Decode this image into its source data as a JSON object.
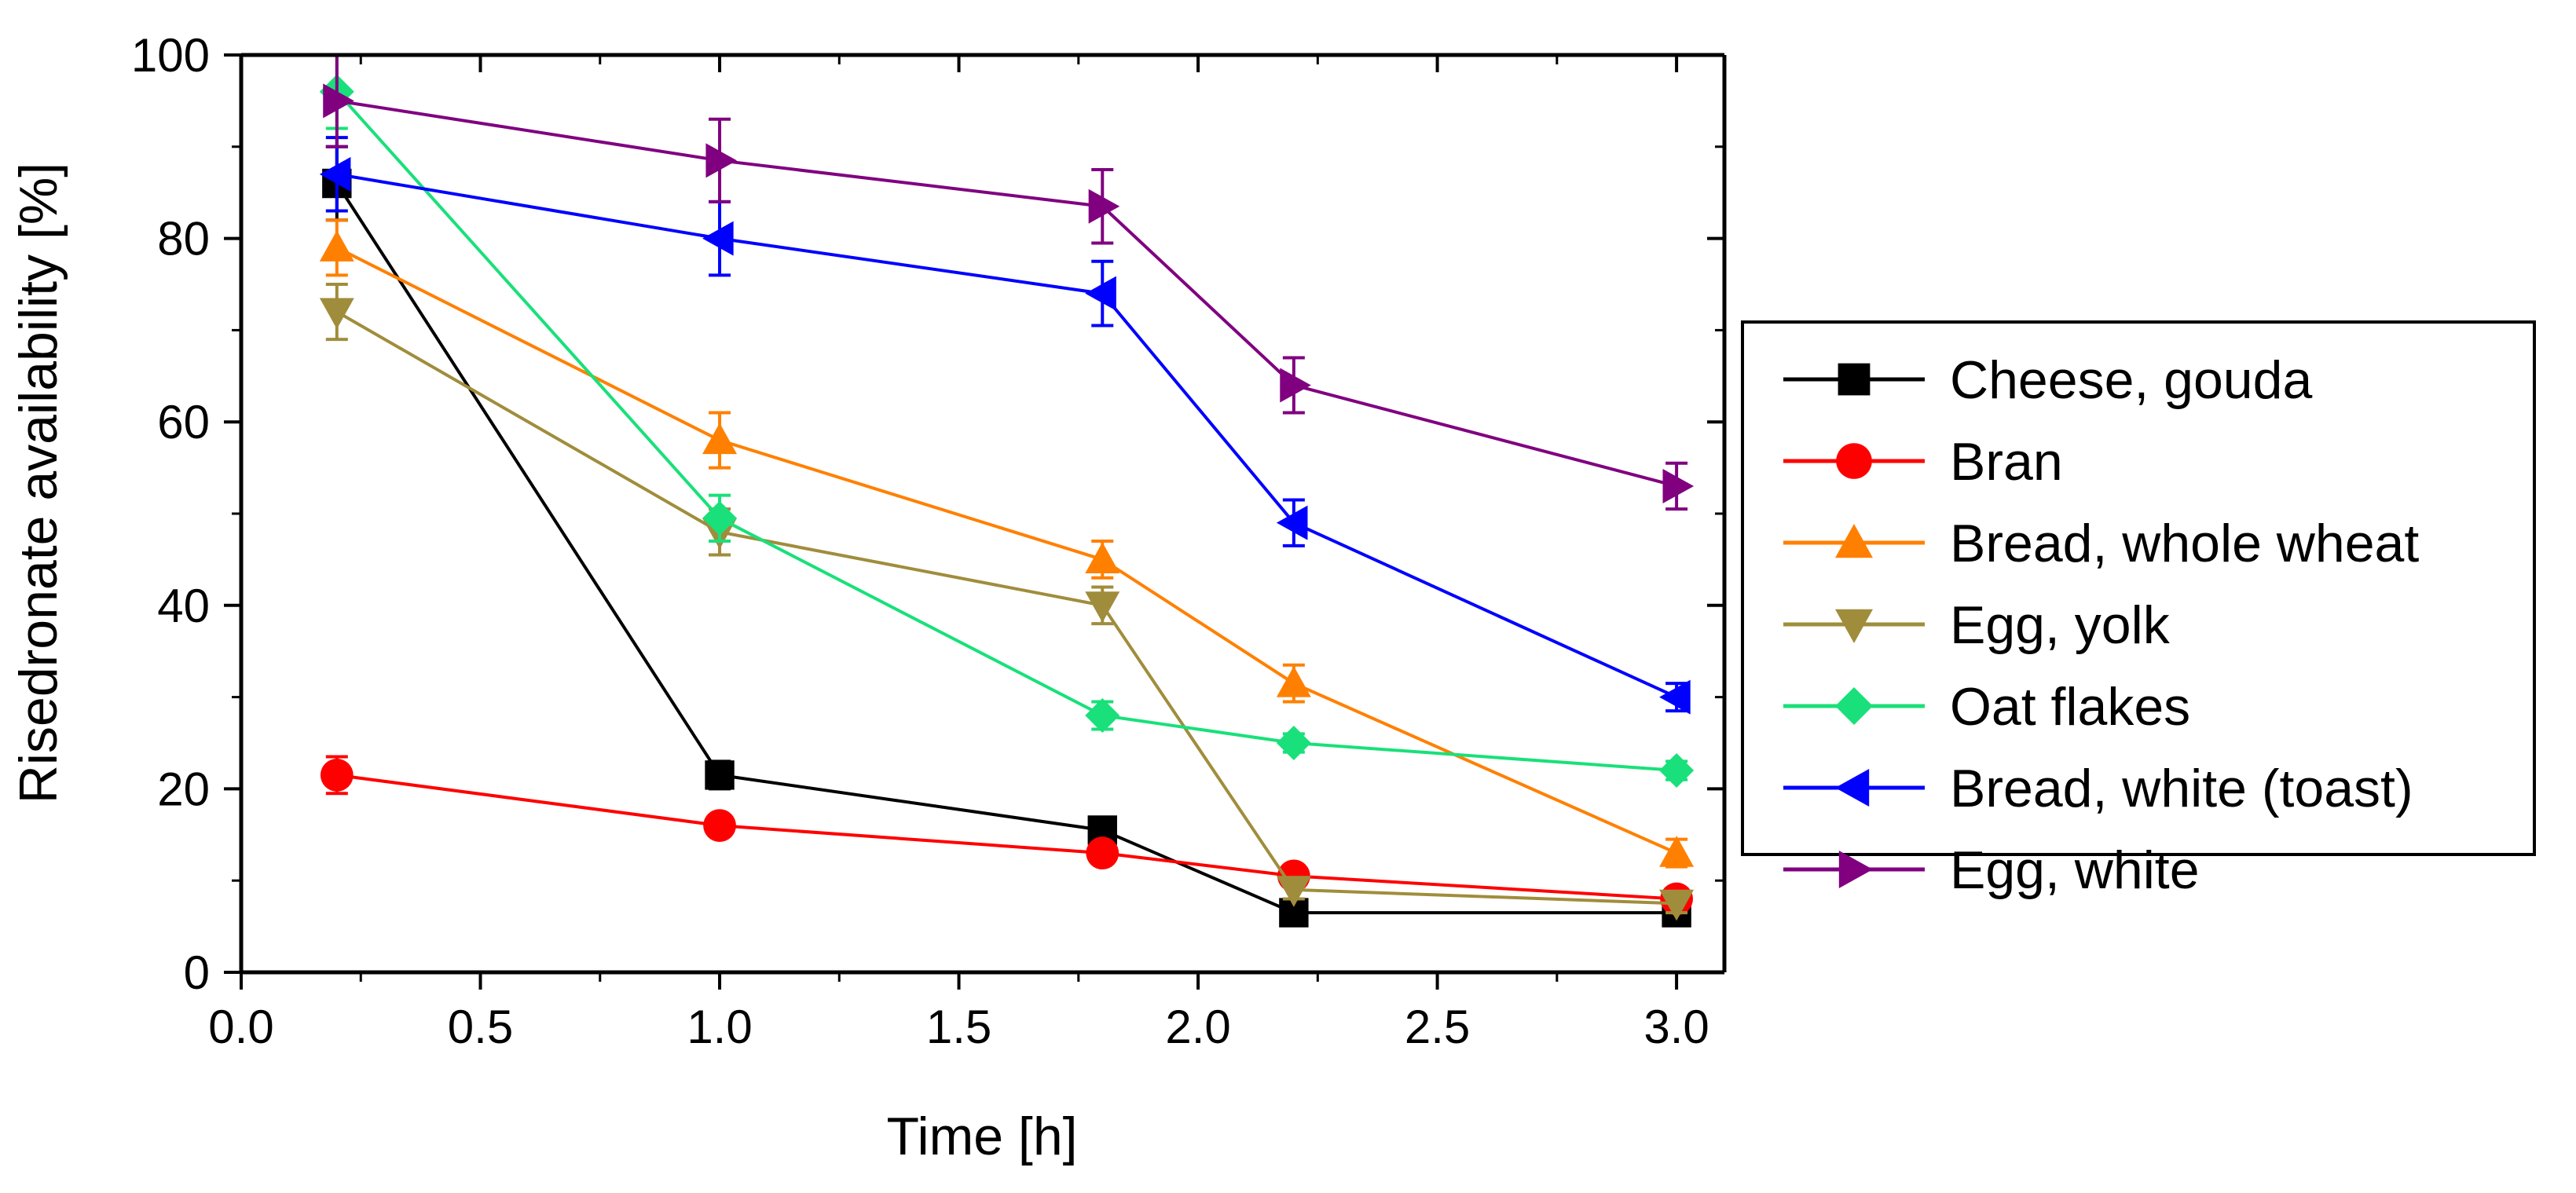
{
  "chart_data": {
    "type": "line",
    "xlabel": "Time [h]",
    "ylabel": "Risedronate availability [%]",
    "xlim": [
      0.0,
      3.1
    ],
    "ylim": [
      0,
      100
    ],
    "xticks": [
      0.0,
      0.5,
      1.0,
      1.5,
      2.0,
      2.5,
      3.0
    ],
    "xtick_labels": [
      "0.0",
      "0.5",
      "1.0",
      "1.5",
      "2.0",
      "2.5",
      "3.0"
    ],
    "yticks": [
      0,
      20,
      40,
      60,
      80,
      100
    ],
    "ytick_labels": [
      "0",
      "20",
      "40",
      "60",
      "80",
      "100"
    ],
    "grid": false,
    "legend_position": "right",
    "series": [
      {
        "name": "Cheese, gouda",
        "color": "#000000",
        "marker": "square",
        "x": [
          0.2,
          1.0,
          1.8,
          2.2,
          3.0
        ],
        "y": [
          86,
          21.5,
          15.5,
          6.5,
          6.5
        ],
        "err": [
          4,
          1.5,
          1.2,
          1,
          1
        ]
      },
      {
        "name": "Bran",
        "color": "#ff0000",
        "marker": "circle",
        "x": [
          0.2,
          1.0,
          1.8,
          2.2,
          3.0
        ],
        "y": [
          21.5,
          16,
          13,
          10.5,
          8
        ],
        "err": [
          2,
          1,
          1,
          1,
          1
        ]
      },
      {
        "name": "Bread, whole wheat",
        "color": "#ff8000",
        "marker": "triangle-up",
        "x": [
          0.2,
          1.0,
          1.8,
          2.2,
          3.0
        ],
        "y": [
          79,
          58,
          45,
          31.5,
          13
        ],
        "err": [
          3,
          3,
          2,
          2,
          1.5
        ]
      },
      {
        "name": "Egg, yolk",
        "color": "#a08d3c",
        "marker": "triangle-down",
        "x": [
          0.2,
          1.0,
          1.8,
          2.2,
          3.0
        ],
        "y": [
          72,
          48,
          40,
          9,
          7.5
        ],
        "err": [
          3,
          2.5,
          2,
          1,
          1
        ]
      },
      {
        "name": "Oat flakes",
        "color": "#19e07a",
        "marker": "diamond",
        "x": [
          0.2,
          1.0,
          1.8,
          2.2,
          3.0
        ],
        "y": [
          96,
          49.5,
          28,
          25,
          22
        ],
        "err": [
          4,
          2.5,
          1.5,
          1,
          1
        ]
      },
      {
        "name": "Bread, white (toast)",
        "color": "#0000ff",
        "marker": "triangle-left",
        "x": [
          0.2,
          1.0,
          1.8,
          2.2,
          3.0
        ],
        "y": [
          87,
          80,
          74,
          49,
          30
        ],
        "err": [
          4,
          4,
          3.5,
          2.5,
          1.5
        ]
      },
      {
        "name": "Egg, white",
        "color": "#800080",
        "marker": "triangle-right",
        "x": [
          0.2,
          1.0,
          1.8,
          2.2,
          3.0
        ],
        "y": [
          95,
          88.5,
          83.5,
          64,
          53
        ],
        "err": [
          5,
          4.5,
          4,
          3,
          2.5
        ]
      }
    ]
  }
}
